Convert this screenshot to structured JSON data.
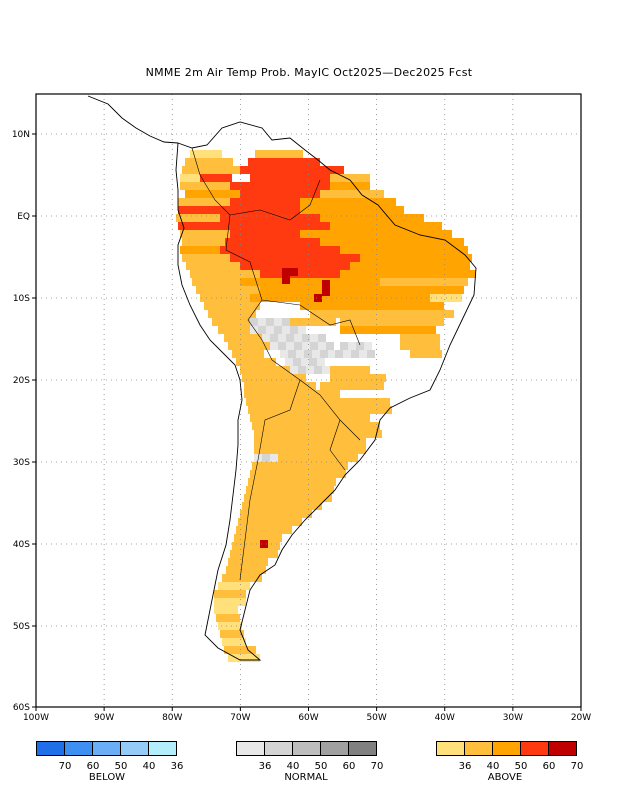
{
  "title": "NMME 2m Air Temp Prob. MayIC  Oct2025—Dec2025 Fcst",
  "lat_labels": [
    "10N",
    "EQ",
    "10S",
    "20S",
    "30S",
    "40S",
    "50S",
    "60S"
  ],
  "lon_labels": [
    "100W",
    "90W",
    "80W",
    "70W",
    "60W",
    "50W",
    "40W",
    "30W",
    "20W"
  ],
  "legend": {
    "below": {
      "label": "BELOW",
      "values": [
        "70",
        "60",
        "50",
        "40",
        "36"
      ],
      "colors": [
        "#1f6fe8",
        "#3d8ff2",
        "#6aaef5",
        "#94ccf7",
        "#b4eefd"
      ]
    },
    "normal": {
      "label": "NORMAL",
      "values": [
        "36",
        "40",
        "50",
        "60",
        "70"
      ],
      "colors": [
        "#e8e8e8",
        "#d4d4d4",
        "#bdbdbd",
        "#a0a0a0",
        "#808080"
      ]
    },
    "above": {
      "label": "ABOVE",
      "values": [
        "36",
        "40",
        "50",
        "60",
        "70"
      ],
      "colors": [
        "#ffe07a",
        "#ffbe3c",
        "#ffa400",
        "#ff3a10",
        "#c00000"
      ]
    }
  }
}
